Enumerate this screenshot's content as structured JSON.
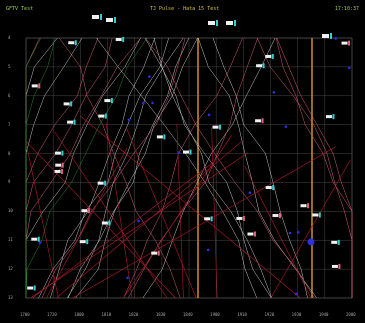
{
  "window": {
    "title": "TJ Pulse - Hata 15 Test",
    "left_label": "GFTV Test",
    "right_label": "17:10:37"
  },
  "colors": {
    "background": "#000000",
    "grid": "#5a5a5a",
    "line_gray": "#c8c8c8",
    "line_pink": "#d8607a",
    "line_red": "#b01a2a",
    "line_green": "#1f8a2a",
    "marker_orange": "#c08a20",
    "badge_white": "#f0f0f0",
    "badge_cyan": "#30d0d0",
    "badge_pink": "#e06080",
    "dot_blue": "#3030e0"
  },
  "x_axis": {
    "ticks": [
      "1700",
      "1720",
      "1800",
      "1810",
      "1820",
      "1830",
      "1840",
      "1900",
      "1910",
      "1920",
      "1930",
      "1940",
      "2000"
    ]
  },
  "y_axis": {
    "labels": [
      "4",
      "5",
      "6",
      "7",
      "8",
      "9",
      "10",
      "11",
      "12",
      "13"
    ]
  }
}
